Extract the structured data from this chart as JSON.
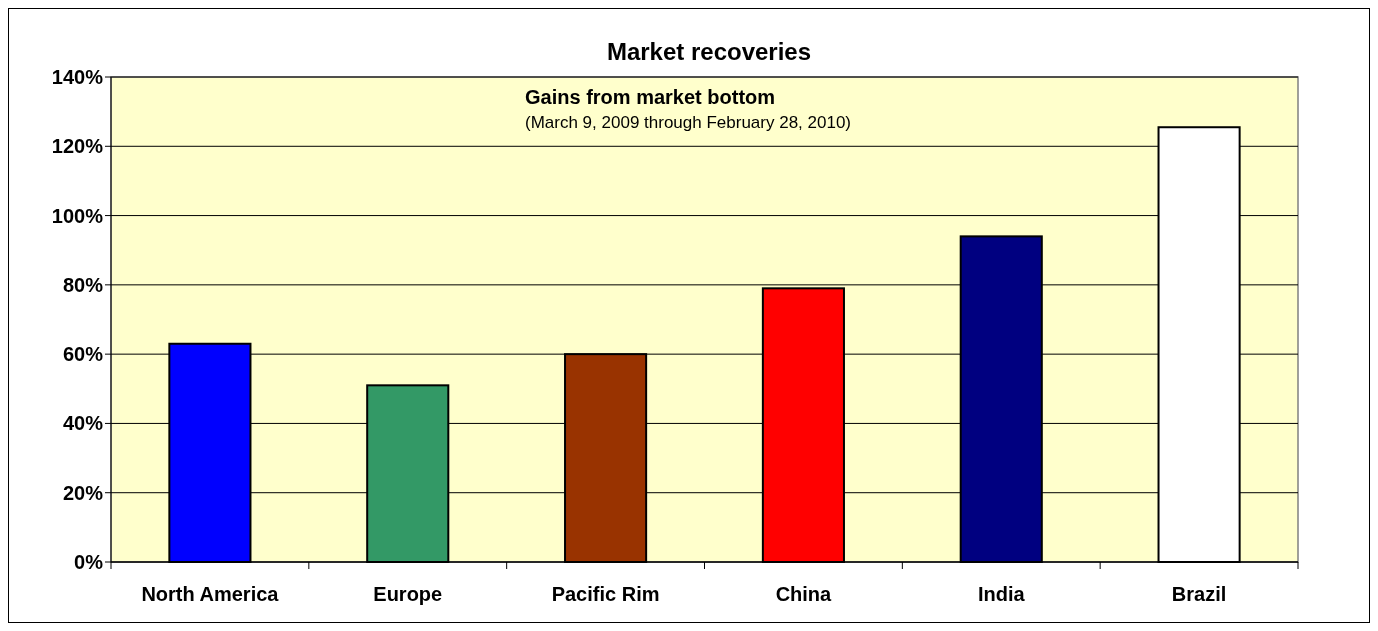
{
  "chart_data": {
    "type": "bar",
    "title": "Market recoveries",
    "subtitle": "Gains from market bottom",
    "annotations": [
      "(March 9, 2009 through February 28, 2010)"
    ],
    "categories": [
      "North America",
      "Europe",
      "Pacific Rim",
      "China",
      "India",
      "Brazil"
    ],
    "values": [
      63,
      51,
      60,
      79,
      94,
      125.5
    ],
    "colors": [
      "#0000ff",
      "#339966",
      "#993300",
      "#ff0000",
      "#000080",
      "#ffffff"
    ],
    "ylim": [
      0,
      140
    ],
    "yticks": [
      {
        "value": 0,
        "label": "0%"
      },
      {
        "value": 20,
        "label": "20%"
      },
      {
        "value": 40,
        "label": "40%"
      },
      {
        "value": 60,
        "label": "60%"
      },
      {
        "value": 80,
        "label": "80%"
      },
      {
        "value": 100,
        "label": "100%"
      },
      {
        "value": 120,
        "label": "120%"
      },
      {
        "value": 140,
        "label": "140%"
      }
    ],
    "grid": "y"
  }
}
